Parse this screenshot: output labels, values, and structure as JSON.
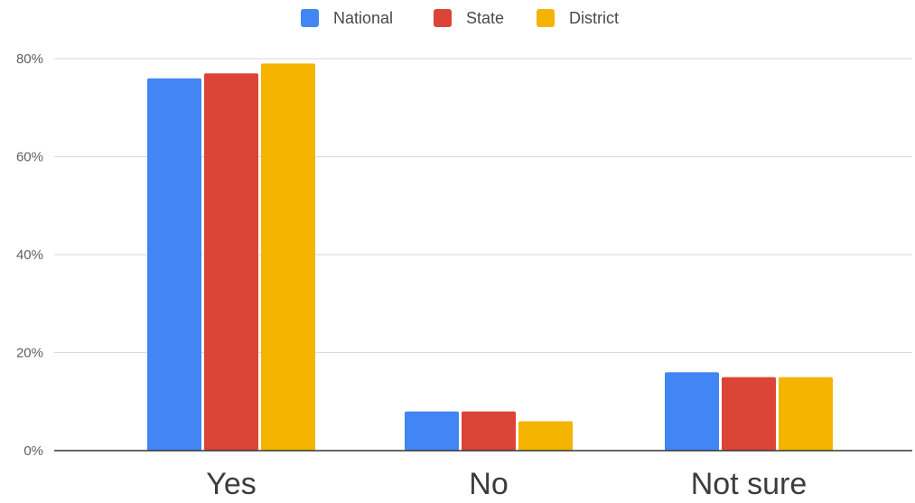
{
  "chart_data": {
    "type": "bar",
    "categories": [
      "Yes",
      "No",
      "Not sure"
    ],
    "series": [
      {
        "name": "National",
        "values": [
          76,
          8,
          16
        ],
        "color": "#4285f4"
      },
      {
        "name": "State",
        "values": [
          77,
          8,
          15
        ],
        "color": "#db4437"
      },
      {
        "name": "District",
        "values": [
          79,
          6,
          15
        ],
        "color": "#f4b400"
      }
    ],
    "y_ticks": [
      "0%",
      "20%",
      "40%",
      "60%",
      "80%"
    ],
    "ylim": [
      0,
      80
    ],
    "unit": "%",
    "grid": true,
    "legend_position": "top-center",
    "colors": {
      "grid": "#d9d9d9",
      "baseline": "#333333"
    }
  }
}
